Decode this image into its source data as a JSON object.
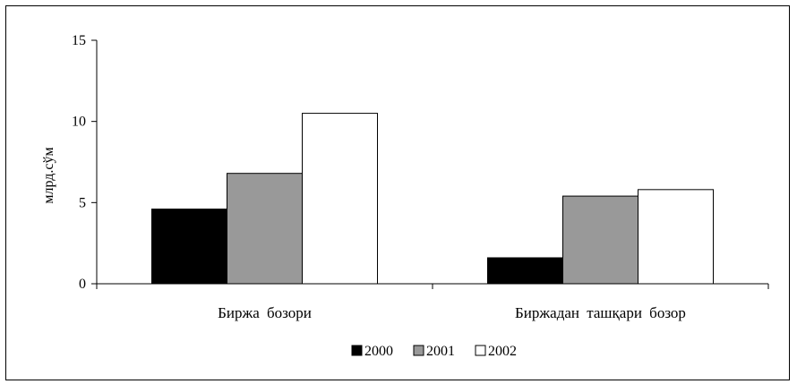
{
  "chart_data": {
    "type": "bar",
    "title": "",
    "xlabel": "",
    "ylabel": "млрд.сўм",
    "ylim": [
      0,
      15
    ],
    "yticks": [
      0,
      5,
      10,
      15
    ],
    "grid": false,
    "legend_position": "bottom",
    "categories": [
      "Биржа бозори",
      "Биржадан ташқари бозор"
    ],
    "series": [
      {
        "name": "2000",
        "values": [
          4.6,
          1.6
        ],
        "color": "#000000"
      },
      {
        "name": "2001",
        "values": [
          6.8,
          5.4
        ],
        "color": "#999999"
      },
      {
        "name": "2002",
        "values": [
          10.5,
          5.8
        ],
        "color": "#ffffff"
      }
    ]
  }
}
